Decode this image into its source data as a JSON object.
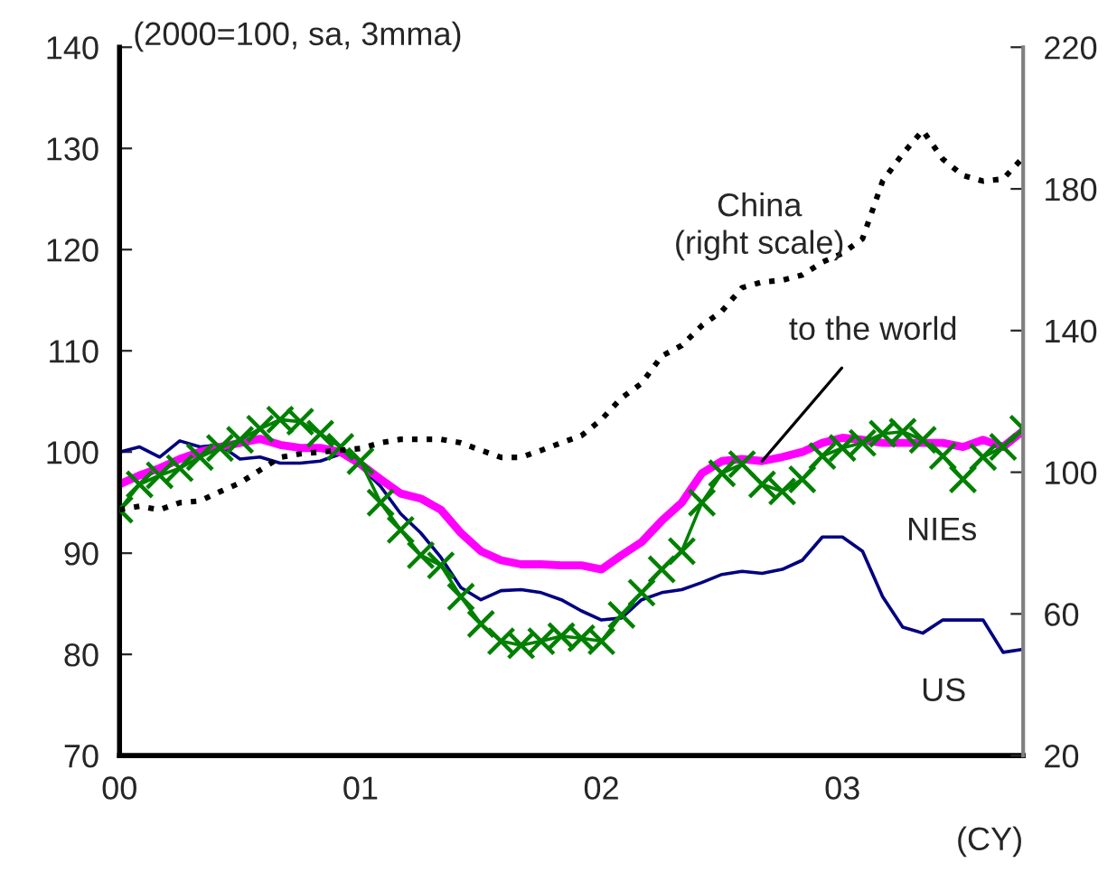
{
  "chart_data": {
    "type": "line",
    "x": [
      "2000-01",
      "2000-02",
      "2000-03",
      "2000-04",
      "2000-05",
      "2000-06",
      "2000-07",
      "2000-08",
      "2000-09",
      "2000-10",
      "2000-11",
      "2000-12",
      "2001-01",
      "2001-02",
      "2001-03",
      "2001-04",
      "2001-05",
      "2001-06",
      "2001-07",
      "2001-08",
      "2001-09",
      "2001-10",
      "2001-11",
      "2001-12",
      "2002-01",
      "2002-02",
      "2002-03",
      "2002-04",
      "2002-05",
      "2002-06",
      "2002-07",
      "2002-08",
      "2002-09",
      "2002-10",
      "2002-11",
      "2002-12",
      "2003-01",
      "2003-02",
      "2003-03",
      "2003-04",
      "2003-05",
      "2003-06",
      "2003-07",
      "2003-08",
      "2003-09",
      "2003-10"
    ],
    "series": [
      {
        "name": "US",
        "color": "#000080",
        "values": [
          100.0,
          100.5,
          99.5,
          101.1,
          100.5,
          100.7,
          99.3,
          99.5,
          98.9,
          98.9,
          99.1,
          99.8,
          98.6,
          96.6,
          93.9,
          92.0,
          89.6,
          86.6,
          85.4,
          86.3,
          86.4,
          86.1,
          85.4,
          84.3,
          83.4,
          83.6,
          85.4,
          86.1,
          86.4,
          87.1,
          87.9,
          88.2,
          88.0,
          88.4,
          89.3,
          91.6,
          91.6,
          90.2,
          85.7,
          82.7,
          82.1,
          83.4,
          83.4,
          83.4,
          80.2,
          80.5
        ]
      },
      {
        "name": "NIEs",
        "color": "#008000",
        "marker": "cross",
        "values": [
          94.3,
          96.8,
          97.7,
          98.4,
          99.5,
          100.4,
          101.2,
          102.3,
          103.2,
          103.0,
          101.8,
          100.5,
          99.1,
          95.0,
          92.3,
          89.8,
          88.8,
          85.7,
          83.0,
          81.3,
          80.9,
          81.3,
          81.8,
          81.6,
          81.3,
          83.9,
          86.1,
          88.4,
          90.2,
          95.0,
          97.9,
          98.8,
          96.8,
          96.1,
          97.3,
          99.6,
          100.4,
          100.9,
          101.8,
          102.0,
          101.2,
          99.6,
          97.3,
          99.5,
          100.5,
          102.3
        ]
      },
      {
        "name": "to the world",
        "color": "#ff00ff",
        "values": [
          96.8,
          97.7,
          98.4,
          99.3,
          100.0,
          100.5,
          100.9,
          101.3,
          100.7,
          100.4,
          100.4,
          100.0,
          98.8,
          97.3,
          95.9,
          95.4,
          94.3,
          92.0,
          90.2,
          89.3,
          88.9,
          88.9,
          88.8,
          88.8,
          88.4,
          89.8,
          91.1,
          93.2,
          95.0,
          97.9,
          99.1,
          99.3,
          99.1,
          99.5,
          100.0,
          100.9,
          101.4,
          101.2,
          100.9,
          100.9,
          100.9,
          100.9,
          100.5,
          101.2,
          100.5,
          102.1
        ]
      },
      {
        "name": "China\n(right scale)",
        "color": "#000000",
        "axis": "y2",
        "line_style": "dotted",
        "values": [
          89.4,
          90.4,
          89.4,
          91.4,
          91.9,
          94.5,
          97.0,
          100.6,
          104.2,
          105.2,
          105.7,
          106.2,
          106.7,
          108.3,
          109.3,
          109.3,
          109.3,
          108.3,
          106.2,
          104.2,
          104.2,
          106.2,
          108.3,
          110.3,
          114.9,
          121.0,
          125.1,
          132.8,
          135.8,
          141.4,
          145.5,
          152.1,
          153.7,
          154.2,
          155.7,
          159.3,
          161.8,
          165.9,
          182.2,
          189.9,
          196.5,
          188.4,
          183.8,
          182.2,
          182.8,
          188.9
        ]
      }
    ],
    "xlabel": "(CY)",
    "annotations": [
      "(2000=100, sa, 3mma)"
    ],
    "xlim": [
      "2000-01",
      "2003-10"
    ],
    "xticks": [
      {
        "value": "2000-01",
        "label": "00"
      },
      {
        "value": "2001-01",
        "label": "01"
      },
      {
        "value": "2002-01",
        "label": "02"
      },
      {
        "value": "2003-01",
        "label": "03"
      }
    ],
    "ylim": [
      70,
      140
    ],
    "yticks": [
      70,
      80,
      90,
      100,
      110,
      120,
      130,
      140
    ],
    "y2lim": [
      20,
      220
    ],
    "y2ticks": [
      20,
      60,
      100,
      140,
      180,
      220
    ],
    "grid": false,
    "legend": false
  }
}
